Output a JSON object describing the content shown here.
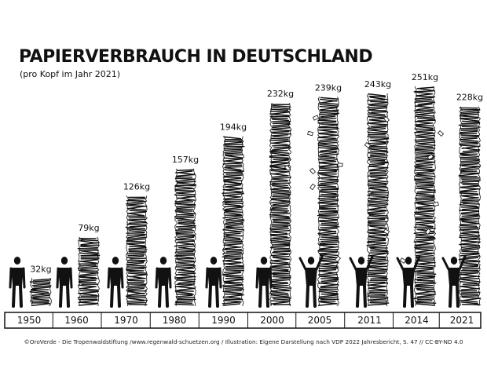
{
  "title": "PAPIERVERBRAUCH IN DEUTSCHLAND",
  "subtitle": "(pro Kopf im Jahr 2021)",
  "footer": "©OroVerde - Die Tropenwaldstiftung /www.regenwald-schuetzen.org / Illustration: Eigene Darstellung nach VDP 2022 Jahresbericht, S. 47 // CC-BY-ND 4.0",
  "chart_data": {
    "type": "bar",
    "title": "PAPIERVERBRAUCH IN DEUTSCHLAND",
    "subtitle": "(pro Kopf im Jahr 2021)",
    "categories": [
      "1950",
      "1960",
      "1970",
      "1980",
      "1990",
      "2000",
      "2005",
      "2011",
      "2014",
      "2021"
    ],
    "values": [
      32,
      79,
      126,
      157,
      194,
      232,
      239,
      243,
      251,
      228
    ],
    "value_labels": [
      "32kg",
      "79kg",
      "126kg",
      "157kg",
      "194kg",
      "232kg",
      "239kg",
      "243kg",
      "251kg",
      "228kg"
    ],
    "unit": "kg",
    "ylim": [
      0,
      251
    ],
    "grid": false,
    "legend": "none",
    "bar_style": "stacked paper sheets",
    "decoration": "human silhouette next to each stack"
  },
  "colors": {
    "ink": "#111111",
    "background": "#ffffff"
  }
}
